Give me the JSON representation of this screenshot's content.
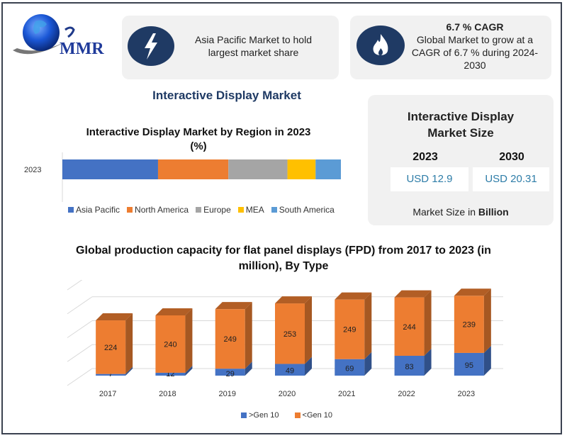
{
  "logo": {
    "text": "MMR"
  },
  "cards": {
    "region": {
      "icon": "lightning-bolt-icon",
      "text_line1": "Asia Pacific Market to hold",
      "text_line2": "largest market share"
    },
    "cagr": {
      "icon": "flame-icon",
      "title": "6.7 % CAGR",
      "line1": "Global Market to grow at a",
      "line2": "CAGR of 6.7 % during 2024-",
      "line3": "2030"
    }
  },
  "main_title": "Interactive Display Market",
  "market_size": {
    "title_line1": "Interactive Display",
    "title_line2": "Market Size",
    "year1": "2023",
    "year2": "2030",
    "value1": "USD 12.9",
    "value2": "USD 20.31",
    "footer_prefix": "Market Size in ",
    "footer_bold": "Billion"
  },
  "colors": {
    "navy": "#1f3a64",
    "blue": "#4472c4",
    "orange": "#ed7d31",
    "gray": "#a5a5a5",
    "yellow": "#ffc000",
    "lightblue": "#5b9bd5",
    "value_text": "#2e7da8"
  },
  "chart_data": [
    {
      "type": "bar",
      "orientation": "horizontal-stacked",
      "title": "Interactive Display Market by Region in 2023",
      "title_line2": "(%)",
      "categories": [
        "2023"
      ],
      "series": [
        {
          "name": "Asia Pacific",
          "values": [
            34
          ],
          "color": "#4472c4"
        },
        {
          "name": "North America",
          "values": [
            25
          ],
          "color": "#ed7d31"
        },
        {
          "name": "Europe",
          "values": [
            21
          ],
          "color": "#a5a5a5"
        },
        {
          "name": "MEA",
          "values": [
            10
          ],
          "color": "#ffc000"
        },
        {
          "name": "South America",
          "values": [
            9
          ],
          "color": "#5b9bd5"
        }
      ],
      "xlim": [
        0,
        100
      ],
      "legend_position": "bottom"
    },
    {
      "type": "bar",
      "orientation": "vertical-stacked-3d",
      "title": "Global production capacity for flat panel displays (FPD) from 2017 to 2023 (in",
      "title_line2": "million), By Type",
      "categories": [
        "2017",
        "2018",
        "2019",
        "2020",
        "2021",
        "2022",
        "2023"
      ],
      "series": [
        {
          "name": ">Gen 10",
          "values": [
            7,
            12,
            29,
            49,
            69,
            83,
            95
          ],
          "color": "#4472c4"
        },
        {
          "name": "<Gen 10",
          "values": [
            224,
            240,
            249,
            253,
            249,
            244,
            239
          ],
          "color": "#ed7d31"
        }
      ],
      "ylim": [
        0,
        400
      ],
      "grid": true,
      "legend_position": "bottom"
    }
  ]
}
